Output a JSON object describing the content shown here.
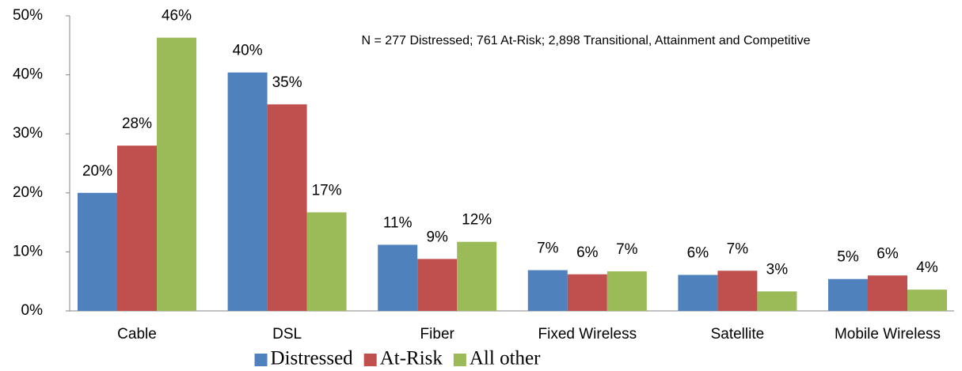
{
  "chart_data": {
    "type": "bar",
    "note": "N = 277 Distressed; 761 At-Risk; 2,898 Transitional, Attainment and Competitive",
    "categories": [
      "Cable",
      "DSL",
      "Fiber",
      "Fixed Wireless",
      "Satellite",
      "Mobile Wireless"
    ],
    "series": [
      {
        "name": "Distressed",
        "color": "#4f81bd",
        "values": [
          20,
          40.4,
          11.2,
          6.9,
          6.1,
          5.4
        ],
        "value_labels": [
          "20%",
          "40%",
          "11%",
          "7%",
          "6%",
          "5%"
        ]
      },
      {
        "name": "At-Risk",
        "color": "#c0504d",
        "values": [
          28,
          35,
          8.8,
          6.2,
          6.8,
          6
        ],
        "value_labels": [
          "28%",
          "35%",
          "9%",
          "6%",
          "7%",
          "6%"
        ]
      },
      {
        "name": "All other",
        "color": "#9bbb59",
        "values": [
          46.3,
          16.7,
          11.7,
          6.7,
          3.3,
          3.6
        ],
        "value_labels": [
          "46%",
          "17%",
          "12%",
          "7%",
          "3%",
          "4%"
        ]
      }
    ],
    "ylim": [
      0,
      50
    ],
    "yticks": [
      {
        "value": 0,
        "label": "0%"
      },
      {
        "value": 10,
        "label": "10%"
      },
      {
        "value": 20,
        "label": "20%"
      },
      {
        "value": 30,
        "label": "30%"
      },
      {
        "value": 40,
        "label": "40%"
      },
      {
        "value": 50,
        "label": "50%"
      }
    ],
    "grid": false,
    "legend": "bottom"
  }
}
